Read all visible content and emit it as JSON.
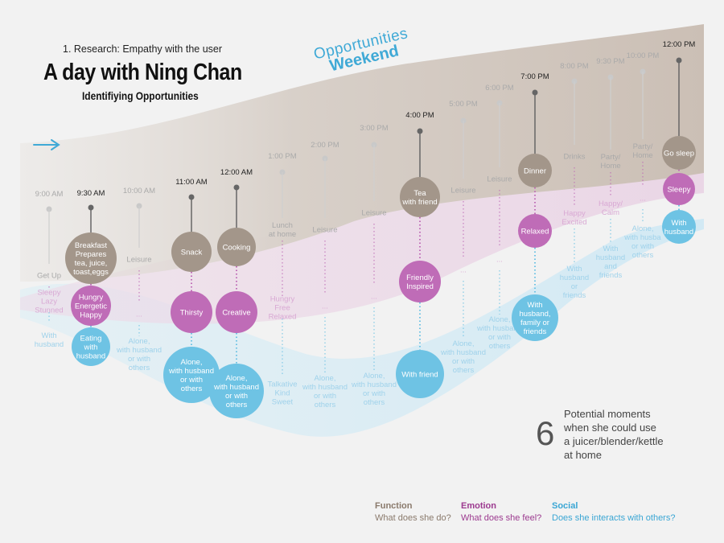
{
  "header": {
    "subtitle": "1. Research: Empathy with the user",
    "title": "A day with Ning Chan",
    "tagline": "Identifiying Opportunities",
    "opportunities_label": "Opportunities",
    "opportunities_sub": "Weekend"
  },
  "summary": {
    "count": "6",
    "lines": [
      "Potential moments",
      "when she could use",
      "a juicer/blender/kettle",
      "at home"
    ]
  },
  "legend": [
    {
      "title": "Function",
      "text": "What does she do?",
      "color": "#8a7a6c"
    },
    {
      "title": "Emotion",
      "text": "What does she feel?",
      "color": "#9c3a8f"
    },
    {
      "title": "Social",
      "text": "Does she interacts with others?",
      "color": "#3aa6d4"
    }
  ],
  "colors": {
    "function": "#a3968a",
    "emotion": "#bf6cb7",
    "social": "#6ec3e4",
    "accent": "#3fa9d6"
  },
  "timeline": [
    {
      "time": "9:00 AM",
      "highlight": false,
      "function": [
        "Get Up"
      ],
      "emotion": [
        "Sleepy",
        "Lazy",
        "Stunned"
      ],
      "social": [
        "With",
        "husband"
      ]
    },
    {
      "time": "9:30 AM",
      "highlight": true,
      "function": [
        "Breakfast",
        "Prepares",
        "tea, juice,",
        "toast,eggs"
      ],
      "emotion": [
        "Hungry",
        "Energetic",
        "Happy"
      ],
      "social": [
        "Eating",
        "with",
        "husband"
      ]
    },
    {
      "time": "10:00 AM",
      "highlight": false,
      "function": [
        "Leisure"
      ],
      "emotion": [
        "..."
      ],
      "social": [
        "Alone,",
        "with husband",
        "or with",
        "others"
      ]
    },
    {
      "time": "11:00 AM",
      "highlight": true,
      "function": [
        "Snack"
      ],
      "emotion": [
        "Thirsty"
      ],
      "social": [
        "Alone,",
        "with husband",
        "or with",
        "others"
      ]
    },
    {
      "time": "12:00 AM",
      "highlight": true,
      "function": [
        "Cooking"
      ],
      "emotion": [
        "Creative"
      ],
      "social": [
        "Alone,",
        "with husband",
        "or with",
        "others"
      ]
    },
    {
      "time": "1:00 PM",
      "highlight": false,
      "function": [
        "Lunch",
        "at home"
      ],
      "emotion": [
        "Hungry",
        "Free",
        "Relaxed"
      ],
      "social": [
        "Talkative",
        "Kind",
        "Sweet"
      ]
    },
    {
      "time": "2:00 PM",
      "highlight": false,
      "function": [
        "Leisure"
      ],
      "emotion": [
        "..."
      ],
      "social": [
        "Alone,",
        "with husband",
        "or with",
        "others"
      ]
    },
    {
      "time": "3:00 PM",
      "highlight": false,
      "function": [
        "Leisure"
      ],
      "emotion": [
        "..."
      ],
      "social": [
        "Alone,",
        "with husband",
        "or with",
        "others"
      ]
    },
    {
      "time": "4:00 PM",
      "highlight": true,
      "function": [
        "Tea",
        "with friend"
      ],
      "emotion": [
        "Friendly",
        "Inspired"
      ],
      "social": [
        "With friend"
      ]
    },
    {
      "time": "5:00 PM",
      "highlight": false,
      "function": [
        "Leisure"
      ],
      "emotion": [
        "..."
      ],
      "social": [
        "Alone,",
        "with husband",
        "or with",
        "others"
      ]
    },
    {
      "time": "6:00 PM",
      "highlight": false,
      "function": [
        "Leisure"
      ],
      "emotion": [
        "..."
      ],
      "social": [
        "Alone,",
        "with husband",
        "or with",
        "others"
      ]
    },
    {
      "time": "7:00 PM",
      "highlight": true,
      "function": [
        "Dinner"
      ],
      "emotion": [
        "Relaxed"
      ],
      "social": [
        "With",
        "husband,",
        "family or",
        "friends"
      ]
    },
    {
      "time": "8:00 PM",
      "highlight": false,
      "function": [
        "Drinks"
      ],
      "emotion": [
        "Happy",
        "Excited"
      ],
      "social": [
        "With",
        "husband",
        "or",
        "friends"
      ]
    },
    {
      "time": "9:30 PM",
      "highlight": false,
      "function": [
        "Party/",
        "Home"
      ],
      "emotion": [
        "Happy/",
        "Calm"
      ],
      "social": [
        "With",
        "husband",
        "and",
        "friends"
      ]
    },
    {
      "time": "10:00 PM",
      "highlight": false,
      "function": [
        "Party/",
        "Home"
      ],
      "emotion": [
        "..."
      ],
      "social": [
        "Alone,",
        "with husba",
        "or with",
        "others"
      ]
    },
    {
      "time": "12:00 PM",
      "highlight": true,
      "function": [
        "Go sleep"
      ],
      "emotion": [
        "Sleepy"
      ],
      "social": [
        "With",
        "husband"
      ]
    }
  ]
}
